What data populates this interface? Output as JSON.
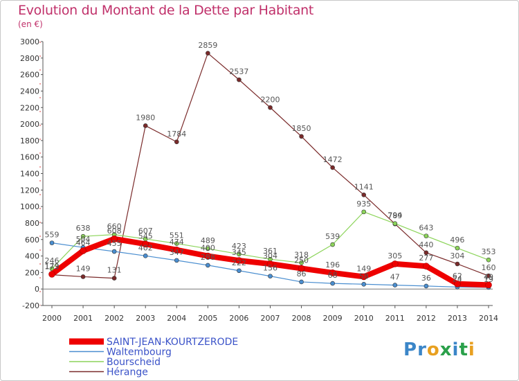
{
  "title": "Evolution du Montant de la Dette par Habitant",
  "unit": "(en €)",
  "logo": {
    "text": "Proxiti",
    "colors": [
      "#3b86c8",
      "#3b86c8",
      "#e8a020",
      "#2aa04a",
      "#3b86c8",
      "#2aa04a",
      "#e8a020"
    ]
  },
  "chart_data": {
    "type": "line",
    "title": "Evolution du Montant de la Dette par Habitant",
    "ylabel": "(en €)",
    "xlabel": "",
    "ylim": [
      -200,
      3000
    ],
    "yticks": [
      -200,
      0,
      200,
      400,
      600,
      800,
      1000,
      1200,
      1400,
      1600,
      1800,
      2000,
      2200,
      2400,
      2600,
      2800,
      3000
    ],
    "categories": [
      "2000",
      "2001",
      "2002",
      "2003",
      "2004",
      "2005",
      "2006",
      "2007",
      "2008",
      "2009",
      "2010",
      "2011",
      "2012",
      "2013",
      "2014"
    ],
    "grid": false,
    "legend": "bottom-left",
    "series": [
      {
        "name": "Hérange",
        "color": "#7a2a2a",
        "values": [
          173,
          149,
          131,
          1980,
          1784,
          2859,
          2537,
          2200,
          1850,
          1472,
          1141,
          789,
          440,
          304,
          160
        ]
      },
      {
        "name": "Bourscheid",
        "color": "#8cd45a",
        "values": [
          246,
          638,
          660,
          607,
          551,
          489,
          423,
          361,
          318,
          539,
          935,
          794,
          643,
          496,
          353
        ]
      },
      {
        "name": "Waltembourg",
        "color": "#4a8ed0",
        "values": [
          559,
          504,
          455,
          402,
          347,
          288,
          222,
          156,
          86,
          68,
          58,
          47,
          36,
          24,
          19
        ]
      },
      {
        "name": "SAINT-JEAN-KOURTZERODE",
        "color": "#ee0000",
        "values": [
          179,
          464,
          608,
          545,
          474,
          400,
          345,
          304,
          250,
          196,
          149,
          305,
          277,
          62,
          49
        ]
      }
    ]
  }
}
